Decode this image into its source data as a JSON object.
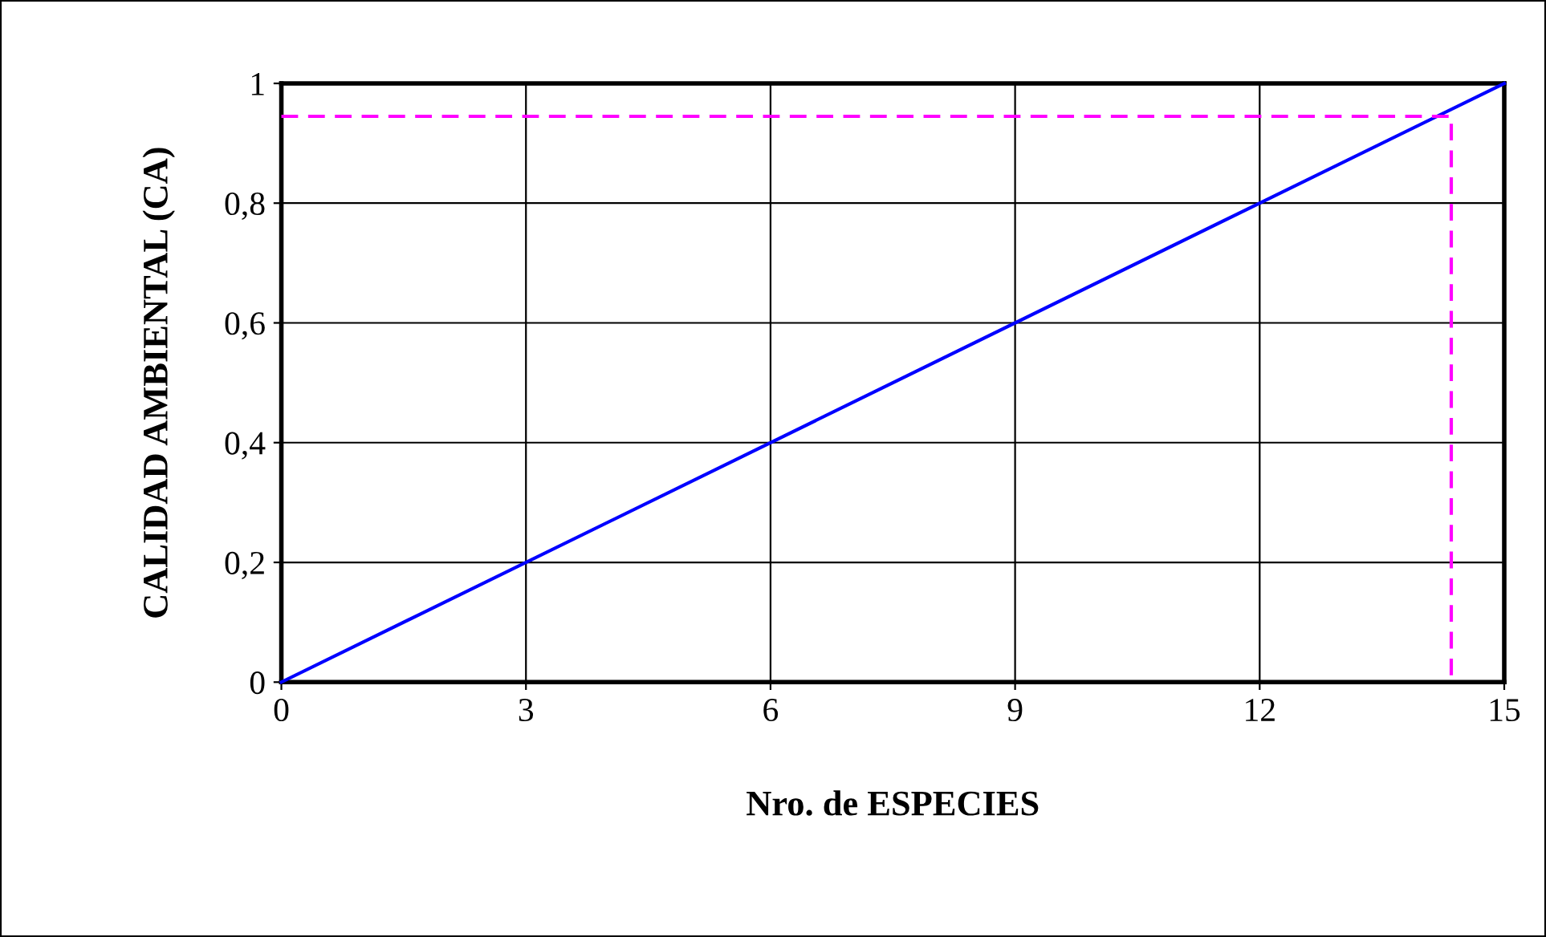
{
  "chart_data": {
    "type": "line",
    "xlabel": "Nro. de ESPECIES",
    "ylabel": "CALIDAD AMBIENTAL (CA)",
    "series": [
      {
        "color": "#0000ff",
        "line_style": "solid",
        "x": [
          0,
          15
        ],
        "values": [
          0,
          1
        ]
      },
      {
        "color": "#ff00ff",
        "line_style": "dashed",
        "x": [
          0,
          14.35,
          14.35
        ],
        "values": [
          0.945,
          0.945,
          0
        ]
      }
    ],
    "xlim": [
      0,
      15
    ],
    "xticks": [
      0,
      3,
      6,
      9,
      12,
      15
    ],
    "ylim": [
      0,
      1
    ],
    "yticks": [
      0,
      {
        "value": 0.2,
        "label": "0,2"
      },
      {
        "value": 0.4,
        "label": "0,4"
      },
      {
        "value": 0.6,
        "label": "0,6"
      },
      {
        "value": 0.8,
        "label": "0,8"
      },
      1
    ],
    "grid": true,
    "marker": "none"
  }
}
